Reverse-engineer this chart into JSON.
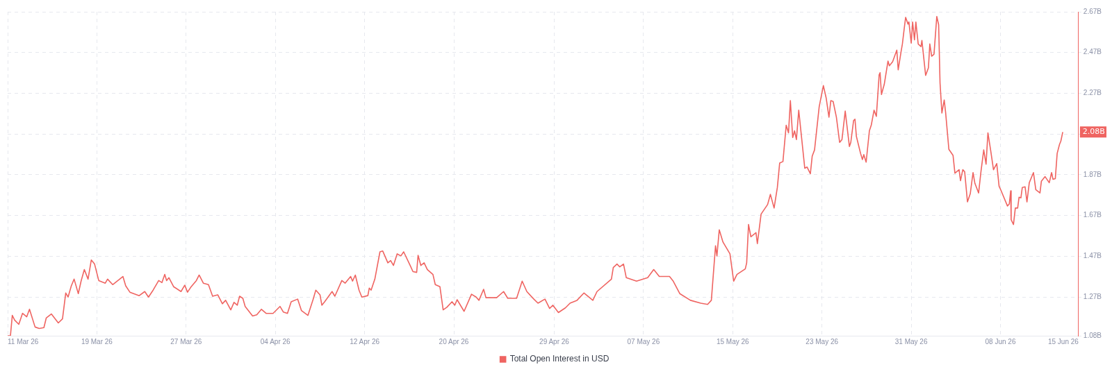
{
  "chart_data": {
    "type": "line",
    "xlim": [
      "--03-11",
      "--06-15"
    ],
    "xticks": [
      {
        "value": "--03-11",
        "label": "11 Mar 26"
      },
      {
        "value": "--03-19",
        "label": "19 Mar 26"
      },
      {
        "value": "--03-27",
        "label": "27 Mar 26"
      },
      {
        "value": "--04-04",
        "label": "04 Apr 26"
      },
      {
        "value": "--04-12",
        "label": "12 Apr 26"
      },
      {
        "value": "--04-20",
        "label": "20 Apr 26"
      },
      {
        "value": "--04-29",
        "label": "29 Apr 26"
      },
      {
        "value": "--05-07",
        "label": "07 May 26"
      },
      {
        "value": "--05-15",
        "label": "15 May 26"
      },
      {
        "value": "--05-23",
        "label": "23 May 26"
      },
      {
        "value": "--05-31",
        "label": "31 May 26"
      },
      {
        "value": "--06-08",
        "label": "08 Jun 26"
      },
      {
        "value": "--06-15",
        "label": "15 Jun 26"
      }
    ],
    "ylim": [
      1.08,
      2.67
    ],
    "yticks": [
      {
        "value": 1.08,
        "label": "1.08B"
      },
      {
        "value": 1.27,
        "label": "1.27B"
      },
      {
        "value": 1.47,
        "label": "1.47B"
      },
      {
        "value": 1.67,
        "label": "1.67B"
      },
      {
        "value": 1.87,
        "label": "1.87B"
      },
      {
        "value": 2.07,
        "label": null
      },
      {
        "value": 2.27,
        "label": "2.27B"
      },
      {
        "value": 2.47,
        "label": "2.47B"
      },
      {
        "value": 2.67,
        "label": "2.67B"
      }
    ],
    "grid": true,
    "legend": "bottom",
    "marker": "none",
    "line_style": "solid",
    "annotations": [
      {
        "text": "2.08B",
        "x": "--06-13T14:00",
        "y": 2.08
      }
    ],
    "series": [
      {
        "name": "Total Open Interest in USD",
        "color": "#ef6461",
        "x": [
          "--03-11T00:00",
          "--03-11T06:00",
          "--03-11T10:00",
          "--03-11T15:00",
          "--03-12T00:00",
          "--03-12T08:00",
          "--03-12T17:00",
          "--03-12T23:00",
          "--03-13T11:00",
          "--03-13T20:00",
          "--03-14T06:00",
          "--03-14T11:00",
          "--03-14T22:00",
          "--03-15T13:00",
          "--03-15T22:00",
          "--03-16T05:00",
          "--03-16T10:00",
          "--03-16T17:00",
          "--03-16T23:00",
          "--03-17T08:00",
          "--03-17T14:00",
          "--03-17T21:00",
          "--03-18T05:00",
          "--03-18T12:00",
          "--03-18T19:00",
          "--03-19T04:00",
          "--03-19T18:00",
          "--03-19T23:00",
          "--03-20T10:00",
          "--03-21T01:00",
          "--03-21T08:00",
          "--03-21T14:00",
          "--03-21T23:00",
          "--03-22T19:00",
          "--03-23T07:00",
          "--03-23T15:00",
          "--03-24T01:00",
          "--03-24T13:00",
          "--03-24T20:00",
          "--03-25T02:00",
          "--03-25T06:00",
          "--03-25T11:00",
          "--03-25T21:00",
          "--03-26T13:00",
          "--03-26T21:00",
          "--03-27T03:00",
          "--03-27T10:00",
          "--03-27T22:00",
          "--03-28T04:00",
          "--03-28T13:00",
          "--03-29T00:00",
          "--03-29T09:00",
          "--03-29T20:00",
          "--03-30T06:00",
          "--03-30T13:00",
          "--03-31T00:00",
          "--03-31T07:00",
          "--03-31T14:00",
          "--03-31T19:00",
          "--04-01T02:00",
          "--04-01T07:00",
          "--04-01T23:00",
          "--04-02T08:00",
          "--04-02T18:00",
          "--04-03T04:00",
          "--04-03T19:00",
          "--04-04T10:00",
          "--04-04T17:00",
          "--04-05T02:00",
          "--04-05T10:00",
          "--04-06T00:00",
          "--04-06T08:00",
          "--04-06T22:00",
          "--04-07T09:00",
          "--04-07T15:00",
          "--04-08T00:00",
          "--04-08T04:00",
          "--04-08T10:00",
          "--04-09T02:00",
          "--04-09T08:00",
          "--04-09T23:00",
          "--04-10T06:00",
          "--04-10T18:00",
          "--04-10T22:00",
          "--04-11T04:00",
          "--04-11T12:00",
          "--04-11T18:00",
          "--04-12T07:00",
          "--04-12T10:00",
          "--04-12T14:00",
          "--04-12T22:00",
          "--04-13T09:00",
          "--04-13T15:00",
          "--04-14T02:00",
          "--04-14T08:00",
          "--04-14T14:00",
          "--04-14T22:00",
          "--04-15T06:00",
          "--04-15T12:00",
          "--04-16T02:00",
          "--04-16T08:00",
          "--04-16T16:00",
          "--04-16T19:00",
          "--04-17T01:00",
          "--04-17T08:00",
          "--04-17T15:00",
          "--04-18T03:00",
          "--04-18T08:00",
          "--04-18T18:00",
          "--04-19T01:00",
          "--04-19T09:00",
          "--04-19T20:00",
          "--04-20T02:00",
          "--04-20T07:00",
          "--04-20T22:00",
          "--04-21T14:00",
          "--04-22T00:00",
          "--04-22T06:00",
          "--04-22T16:00",
          "--04-22T21:00",
          "--04-23T20:00",
          "--04-24T11:00",
          "--04-24T20:00",
          "--04-25T15:00",
          "--04-26T03:00",
          "--04-26T13:00",
          "--04-27T04:00",
          "--04-27T13:00",
          "--04-28T04:00",
          "--04-28T14:00",
          "--04-28T21:00",
          "--04-29T09:00",
          "--04-30T00:00",
          "--04-30T10:00",
          "--05-01T01:00",
          "--05-01T16:00",
          "--05-02T11:00",
          "--05-02T20:00",
          "--05-04T03:00",
          "--05-04T07:00",
          "--05-04T15:00",
          "--05-04T21:00",
          "--05-05T05:00",
          "--05-05T11:00",
          "--05-06T09:00",
          "--05-07T09:00",
          "--05-07T22:00",
          "--05-08T10:00",
          "--05-09T08:00",
          "--05-09T16:00",
          "--05-10T06:00",
          "--05-11T05:00",
          "--05-12T03:00",
          "--05-12T18:00",
          "--05-13T02:00",
          "--05-13T11:00",
          "--05-13T14:00",
          "--05-13T19:00",
          "--05-14T03:00",
          "--05-14T18:00",
          "--05-15T02:00",
          "--05-15T09:00",
          "--05-16T03:00",
          "--05-16T06:00",
          "--05-16T10:00",
          "--05-16T15:00",
          "--05-17T02:00",
          "--05-17T05:00",
          "--05-17T13:00",
          "--05-18T03:00",
          "--05-18T09:00",
          "--05-18T17:00",
          "--05-19T00:00",
          "--05-19T05:00",
          "--05-19T12:00",
          "--05-19T19:00",
          "--05-20T00:00",
          "--05-20T04:00",
          "--05-20T09:00",
          "--05-20T13:00",
          "--05-20T17:00",
          "--05-20T22:00",
          "--05-21T11:00",
          "--05-21T16:00",
          "--05-21T23:00",
          "--05-22T03:00",
          "--05-22T08:00",
          "--05-22T18:00",
          "--05-23T03:00",
          "--05-23T09:00",
          "--05-23T15:00",
          "--05-23T19:00",
          "--05-24T00:00",
          "--05-24T07:00",
          "--05-24T14:00",
          "--05-24T19:00",
          "--05-25T02:00",
          "--05-25T11:00",
          "--05-25T14:00",
          "--05-25T20:00",
          "--05-25T23:00",
          "--05-26T02:00",
          "--05-26T11:00",
          "--05-26T15:00",
          "--05-26T18:00",
          "--05-26T23:00",
          "--05-27T06:00",
          "--05-27T10:00",
          "--05-27T16:00",
          "--05-27T21:00",
          "--05-28T03:00",
          "--05-28T05:00",
          "--05-28T08:00",
          "--05-28T14:00",
          "--05-28T22:00",
          "--05-29T01:00",
          "--05-29T08:00",
          "--05-29T17:00",
          "--05-29T20:00",
          "--05-30T02:00",
          "--05-30T05:00",
          "--05-30T09:00",
          "--05-30T12:00",
          "--05-30T17:00",
          "--05-30T19:00",
          "--05-31T00:00",
          "--05-31T03:00",
          "--05-31T07:00",
          "--05-31T10:00",
          "--05-31T15:00",
          "--05-31T21:00",
          "--05-31T23:00",
          "--06-01T07:00",
          "--06-01T13:00",
          "--06-01T16:00",
          "--06-01T20:00",
          "--06-02T01:00",
          "--06-02T07:00",
          "--06-02T11:00",
          "--06-02T14:00",
          "--06-02T18:00",
          "--06-02T23:00",
          "--06-03T02:00",
          "--06-03T09:00",
          "--06-03T18:00",
          "--06-03T22:00",
          "--06-04T07:00",
          "--06-04T10:00",
          "--06-04T15:00",
          "--06-04T19:00",
          "--06-05T01:00",
          "--06-05T07:00",
          "--06-05T13:00",
          "--06-05T17:00",
          "--06-06T01:00",
          "--06-06T06:00",
          "--06-06T12:00",
          "--06-06T17:00",
          "--06-06T21:00",
          "--06-07T03:00",
          "--06-07T09:00",
          "--06-07T16:00",
          "--06-07T21:00",
          "--06-08T01:00",
          "--06-08T15:00",
          "--06-08T19:00",
          "--06-08T22:00",
          "--06-08T23:00",
          "--06-09T04:00",
          "--06-09T08:00",
          "--06-09T13:00",
          "--06-09T16:00",
          "--06-09T20:00",
          "--06-09T23:00",
          "--06-10T05:00",
          "--06-10T09:00",
          "--06-10T14:00",
          "--06-10T23:00",
          "--06-11T04:00",
          "--06-11T13:00",
          "--06-11T16:00",
          "--06-12T00:00",
          "--06-12T09:00",
          "--06-12T14:00",
          "--06-12T17:00",
          "--06-12T22:00",
          "--06-13T02:00",
          "--06-13T07:00",
          "--06-13T10:00",
          "--06-13T14:00"
        ],
        "values": [
          1.08,
          1.08,
          1.18,
          1.157,
          1.136,
          1.19,
          1.173,
          1.21,
          1.123,
          1.116,
          1.12,
          1.167,
          1.187,
          1.143,
          1.163,
          1.29,
          1.27,
          1.325,
          1.358,
          1.287,
          1.348,
          1.405,
          1.358,
          1.452,
          1.432,
          1.351,
          1.338,
          1.358,
          1.331,
          1.358,
          1.371,
          1.325,
          1.294,
          1.277,
          1.297,
          1.27,
          1.304,
          1.351,
          1.341,
          1.381,
          1.351,
          1.365,
          1.321,
          1.297,
          1.328,
          1.294,
          1.318,
          1.351,
          1.378,
          1.338,
          1.331,
          1.274,
          1.281,
          1.237,
          1.254,
          1.207,
          1.244,
          1.23,
          1.274,
          1.264,
          1.224,
          1.177,
          1.183,
          1.21,
          1.19,
          1.19,
          1.224,
          1.197,
          1.19,
          1.247,
          1.26,
          1.204,
          1.18,
          1.257,
          1.304,
          1.281,
          1.23,
          1.247,
          1.297,
          1.274,
          1.351,
          1.338,
          1.371,
          1.348,
          1.378,
          1.304,
          1.27,
          1.277,
          1.314,
          1.304,
          1.358,
          1.492,
          1.496,
          1.438,
          1.449,
          1.425,
          1.482,
          1.472,
          1.492,
          1.425,
          1.395,
          1.391,
          1.475,
          1.425,
          1.438,
          1.405,
          1.381,
          1.331,
          1.321,
          1.207,
          1.22,
          1.247,
          1.23,
          1.257,
          1.2,
          1.284,
          1.27,
          1.254,
          1.308,
          1.267,
          1.267,
          1.297,
          1.264,
          1.264,
          1.348,
          1.297,
          1.26,
          1.24,
          1.26,
          1.214,
          1.23,
          1.194,
          1.217,
          1.24,
          1.254,
          1.29,
          1.254,
          1.297,
          1.358,
          1.415,
          1.432,
          1.418,
          1.432,
          1.365,
          1.348,
          1.365,
          1.405,
          1.371,
          1.371,
          1.348,
          1.287,
          1.254,
          1.24,
          1.234,
          1.254,
          1.522,
          1.472,
          1.6,
          1.54,
          1.482,
          1.348,
          1.381,
          1.408,
          1.438,
          1.626,
          1.566,
          1.586,
          1.532,
          1.677,
          1.724,
          1.774,
          1.707,
          1.808,
          1.928,
          1.935,
          2.113,
          2.076,
          2.234,
          2.053,
          2.086,
          2.043,
          2.187,
          1.902,
          1.908,
          1.875,
          1.962,
          1.992,
          2.204,
          2.308,
          2.247,
          2.153,
          2.234,
          2.23,
          2.153,
          2.029,
          2.043,
          2.183,
          2.009,
          2.029,
          2.136,
          2.143,
          2.059,
          1.975,
          1.945,
          1.969,
          1.932,
          2.086,
          2.113,
          2.187,
          2.157,
          2.361,
          2.371,
          2.264,
          2.314,
          2.428,
          2.405,
          2.425,
          2.482,
          2.385,
          2.472,
          2.512,
          2.589,
          2.643,
          2.61,
          2.62,
          2.516,
          2.62,
          2.532,
          2.62,
          2.512,
          2.499,
          2.529,
          2.358,
          2.395,
          2.512,
          2.452,
          2.462,
          2.647,
          2.606,
          2.321,
          2.173,
          2.237,
          2.176,
          1.995,
          1.965,
          1.878,
          1.895,
          1.841,
          1.895,
          1.885,
          1.737,
          1.777,
          1.881,
          1.828,
          1.781,
          1.885,
          1.992,
          1.922,
          2.076,
          1.989,
          1.895,
          1.925,
          1.814,
          1.794,
          1.717,
          1.727,
          1.791,
          1.65,
          1.626,
          1.707,
          1.707,
          1.76,
          1.757,
          1.808,
          1.811,
          1.737,
          1.831,
          1.881,
          1.797,
          1.781,
          1.838,
          1.861,
          1.831,
          1.881,
          1.848,
          1.851,
          1.975,
          2.019,
          2.036,
          2.08
        ]
      }
    ]
  }
}
